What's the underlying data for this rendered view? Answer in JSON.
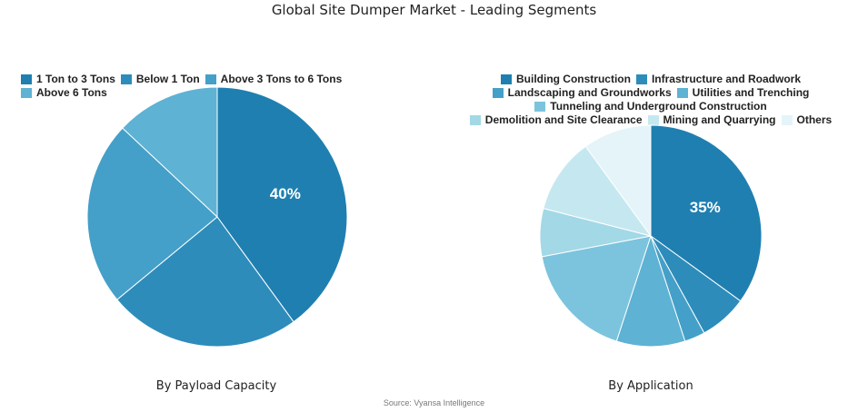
{
  "title": "Global Site Dumper Market - Leading Segments",
  "source": "Source: Vyansa Intelligence",
  "chart_data": [
    {
      "type": "pie",
      "caption": "By Payload Capacity",
      "categories": [
        "1 Ton to 3 Tons",
        "Below 1 Ton",
        "Above 3 Tons to 6 Tons",
        "Above 6 Tons"
      ],
      "values": [
        40,
        24,
        23,
        13
      ],
      "colors": [
        "#1f7fb0",
        "#2e8cbb",
        "#44a0c8",
        "#5eb2d4"
      ],
      "labels": [
        "40%",
        "",
        "",
        ""
      ],
      "legend_position": "top"
    },
    {
      "type": "pie",
      "caption": "By Application",
      "categories": [
        "Building Construction",
        "Infrastructure and Roadwork",
        "Landscaping and Groundworks",
        "Utilities and Trenching",
        "Tunneling and Underground Construction",
        "Demolition and Site Clearance",
        "Mining and Quarrying",
        "Others"
      ],
      "values": [
        35,
        7,
        3,
        10,
        17,
        7,
        11,
        10
      ],
      "colors": [
        "#1f7fb0",
        "#2e8cbb",
        "#44a0c8",
        "#5eb2d4",
        "#7cc4dd",
        "#a3d8e6",
        "#c5e8f0",
        "#e4f4f9"
      ],
      "labels": [
        "35%",
        "",
        "",
        "",
        "",
        "",
        "",
        ""
      ],
      "legend_position": "top"
    }
  ]
}
